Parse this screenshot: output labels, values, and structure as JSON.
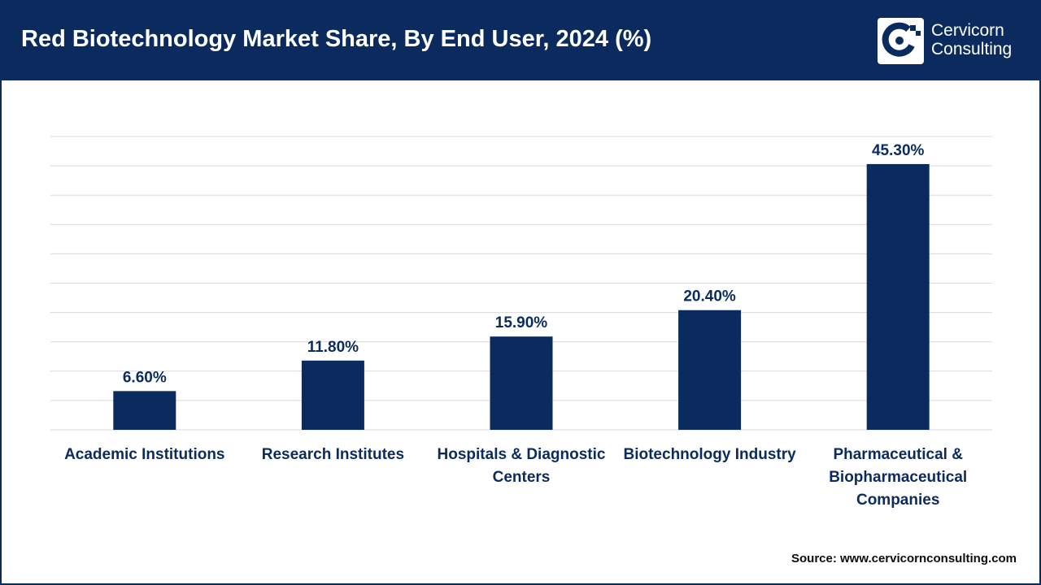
{
  "header": {
    "title": "Red Biotechnology Market Share, By End User, 2024 (%)",
    "brand_line1": "Cervicorn",
    "brand_line2": "Consulting"
  },
  "footer": {
    "source": "Source: www.cervicornconsulting.com"
  },
  "colors": {
    "primary": "#0b2b5e",
    "grid": "#d9d9d9",
    "text": "#0b2b5e"
  },
  "chart_data": {
    "type": "bar",
    "title": "Red Biotechnology Market Share, By End User, 2024 (%)",
    "xlabel": "",
    "ylabel": "",
    "ylim": [
      0,
      50
    ],
    "grid": true,
    "gridline_count": 10,
    "categories": [
      [
        "Academic Institutions"
      ],
      [
        "Research Institutes"
      ],
      [
        "Hospitals & Diagnostic",
        "Centers"
      ],
      [
        "Biotechnology Industry"
      ],
      [
        "Pharmaceutical &",
        "Biopharmaceutical",
        "Companies"
      ]
    ],
    "values": [
      6.6,
      11.8,
      15.9,
      20.4,
      45.3
    ],
    "value_labels": [
      "6.60%",
      "11.80%",
      "15.90%",
      "20.40%",
      "45.30%"
    ]
  }
}
